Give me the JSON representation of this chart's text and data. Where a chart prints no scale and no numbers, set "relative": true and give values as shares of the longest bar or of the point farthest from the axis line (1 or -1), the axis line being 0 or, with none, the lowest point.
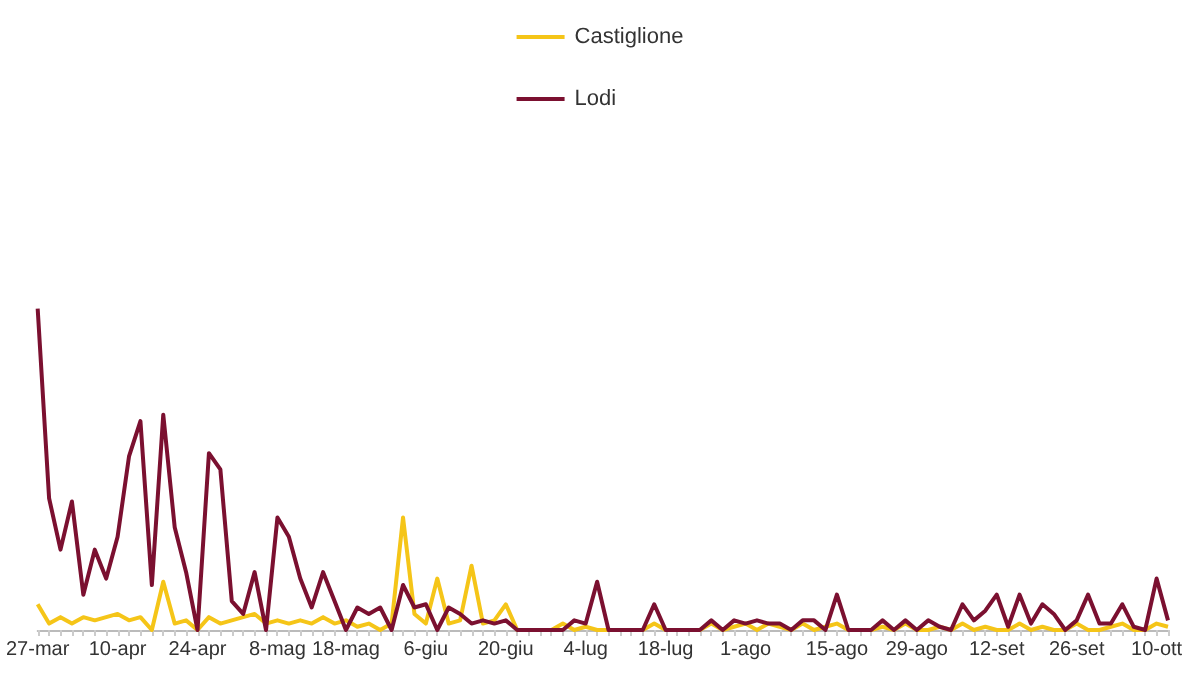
{
  "chart_data": {
    "type": "line",
    "relative": true,
    "legend": "top",
    "marker": "none",
    "categories": [
      "27-mar",
      null,
      null,
      null,
      null,
      null,
      null,
      "10-apr",
      null,
      null,
      null,
      null,
      null,
      null,
      "24-apr",
      null,
      null,
      null,
      null,
      null,
      null,
      "8-mag",
      null,
      null,
      null,
      null,
      null,
      "18-mag",
      null,
      null,
      null,
      null,
      null,
      null,
      "6-giu",
      null,
      null,
      null,
      null,
      null,
      null,
      "20-giu",
      null,
      null,
      null,
      null,
      null,
      null,
      "4-lug",
      null,
      null,
      null,
      null,
      null,
      null,
      "18-lug",
      null,
      null,
      null,
      null,
      null,
      null,
      "1-ago",
      null,
      null,
      null,
      null,
      null,
      null,
      null,
      "15-ago",
      null,
      null,
      null,
      null,
      null,
      null,
      "29-ago",
      null,
      null,
      null,
      null,
      null,
      null,
      "12-set",
      null,
      null,
      null,
      null,
      null,
      null,
      "26-set",
      null,
      null,
      null,
      null,
      null,
      null,
      "10-ott",
      null
    ],
    "series": [
      {
        "name": "Castiglione",
        "color": "#f5c518",
        "values": [
          0.08,
          0.02,
          0.04,
          0.02,
          0.04,
          0.03,
          0.04,
          0.05,
          0.03,
          0.04,
          0,
          0.15,
          0.02,
          0.03,
          0,
          0.04,
          0.02,
          0.03,
          0.04,
          0.05,
          0.02,
          0.03,
          0.02,
          0.03,
          0.02,
          0.04,
          0.02,
          0.03,
          0.01,
          0.02,
          0,
          0.02,
          0.35,
          0.05,
          0.02,
          0.16,
          0.02,
          0.03,
          0.2,
          0.02,
          0.03,
          0.08,
          0,
          0,
          0,
          0,
          0.02,
          0,
          0.01,
          0,
          0,
          0,
          0,
          0,
          0.02,
          0,
          0,
          0,
          0,
          0.02,
          0,
          0.01,
          0.02,
          0,
          0.02,
          0.01,
          0,
          0.02,
          0,
          0.01,
          0.02,
          0,
          0,
          0,
          0.01,
          0,
          0.02,
          0,
          0,
          0.01,
          0,
          0.02,
          0,
          0.01,
          0,
          0,
          0.02,
          0,
          0.01,
          0,
          0,
          0.02,
          0,
          0,
          0.01,
          0.02,
          0,
          0,
          0.02,
          0.01
        ]
      },
      {
        "name": "Lodi",
        "color": "#7b1030",
        "values": [
          1,
          0.41,
          0.25,
          0.4,
          0.11,
          0.25,
          0.16,
          0.29,
          0.54,
          0.65,
          0.14,
          0.67,
          0.32,
          0.18,
          0,
          0.55,
          0.5,
          0.09,
          0.05,
          0.18,
          0,
          0.35,
          0.29,
          0.16,
          0.07,
          0.18,
          0.09,
          0,
          0.07,
          0.05,
          0.07,
          0,
          0.14,
          0.07,
          0.08,
          0,
          0.07,
          0.05,
          0.02,
          0.03,
          0.02,
          0.03,
          0,
          0,
          0,
          0,
          0,
          0.03,
          0.02,
          0.15,
          0,
          0,
          0,
          0,
          0.08,
          0,
          0,
          0,
          0,
          0.03,
          0,
          0.03,
          0.02,
          0.03,
          0.02,
          0.02,
          0,
          0.03,
          0.03,
          0,
          0.11,
          0,
          0,
          0,
          0.03,
          0,
          0.03,
          0,
          0.03,
          0.01,
          0,
          0.08,
          0.03,
          0.06,
          0.11,
          0.01,
          0.11,
          0.02,
          0.08,
          0.05,
          0,
          0.03,
          0.11,
          0.02,
          0.02,
          0.08,
          0.01,
          0,
          0.16,
          0.03
        ]
      }
    ]
  }
}
